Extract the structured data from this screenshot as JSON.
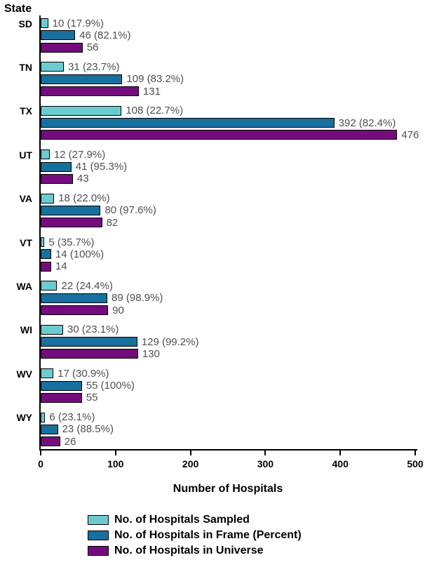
{
  "colors": {
    "sampled": "#6CCBD1",
    "frame": "#17709E",
    "universe": "#750C7D",
    "axis": "#000000",
    "value_label_text": "#4f4f4f"
  },
  "chart_data": {
    "type": "bar",
    "orientation": "horizontal",
    "title": "",
    "ylabel": "State",
    "xlabel": "Number of Hospitals",
    "xlim": [
      0,
      500
    ],
    "xticks": [
      0,
      100,
      200,
      300,
      400,
      500
    ],
    "grid": false,
    "legend_position": "bottom",
    "categories": [
      "SD",
      "TN",
      "TX",
      "UT",
      "VA",
      "VT",
      "WA",
      "WI",
      "WV",
      "WY"
    ],
    "series": [
      {
        "name": "No. of Hospitals Sampled",
        "color_key": "sampled",
        "values": [
          10,
          31,
          108,
          12,
          18,
          5,
          22,
          30,
          17,
          6
        ],
        "labels": [
          "10 (17.9%)",
          "31 (23.7%)",
          "108 (22.7%)",
          "12 (27.9%)",
          "18 (22.0%)",
          "5 (35.7%)",
          "22 (24.4%)",
          "30 (23.1%)",
          "17 (30.9%)",
          "6 (23.1%)"
        ]
      },
      {
        "name": "No. of Hospitals in Frame (Percent)",
        "color_key": "frame",
        "values": [
          46,
          109,
          392,
          41,
          80,
          14,
          89,
          129,
          55,
          23
        ],
        "labels": [
          "46 (82.1%)",
          "109 (83.2%)",
          "392 (82.4%)",
          "41 (95.3%)",
          "80 (97.6%)",
          "14 (100%)",
          "89 (98.9%)",
          "129 (99.2%)",
          "55 (100%)",
          "23 (88.5%)"
        ]
      },
      {
        "name": "No. of Hospitals in Universe",
        "color_key": "universe",
        "values": [
          56,
          131,
          476,
          43,
          82,
          14,
          90,
          130,
          55,
          26
        ],
        "labels": [
          "56",
          "131",
          "476",
          "43",
          "82",
          "14",
          "90",
          "130",
          "55",
          "26"
        ]
      }
    ]
  }
}
